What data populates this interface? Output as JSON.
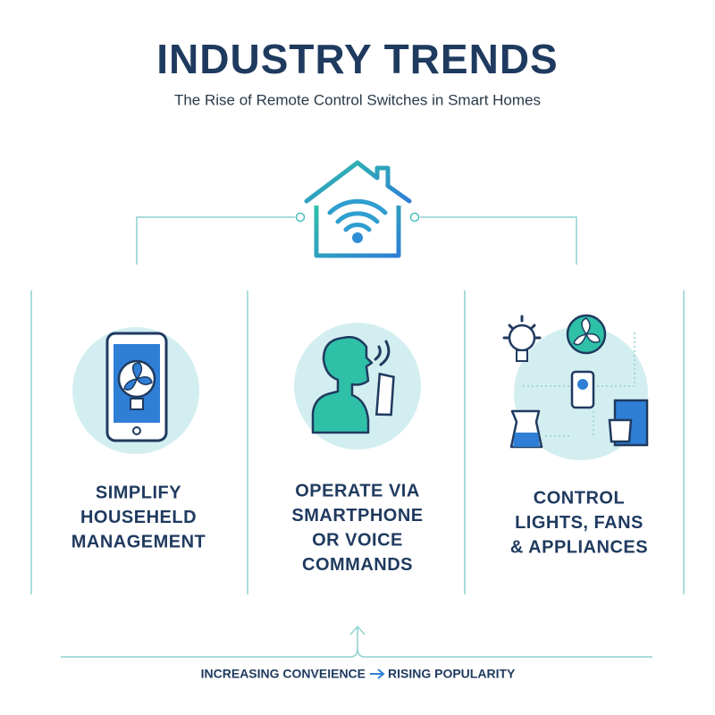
{
  "header": {
    "title": "INDUSTRY TRENDS",
    "subtitle": "The Rise of Remote Control Switches in Smart Homes"
  },
  "columns": [
    {
      "lines": [
        "SIMPLIFY",
        "HOUSEHELD",
        "MANAGEMENT"
      ]
    },
    {
      "lines": [
        "OPERATE VIA",
        "SMARTPHONE",
        "OR VOICE",
        "COMMANDS"
      ]
    },
    {
      "lines": [
        "CONTROL",
        "LIGHTS, FANS",
        "& APPLIANCES"
      ]
    }
  ],
  "footer": {
    "from": "INCREASING CONVEIENCE",
    "to": "RISING POPULARITY"
  }
}
